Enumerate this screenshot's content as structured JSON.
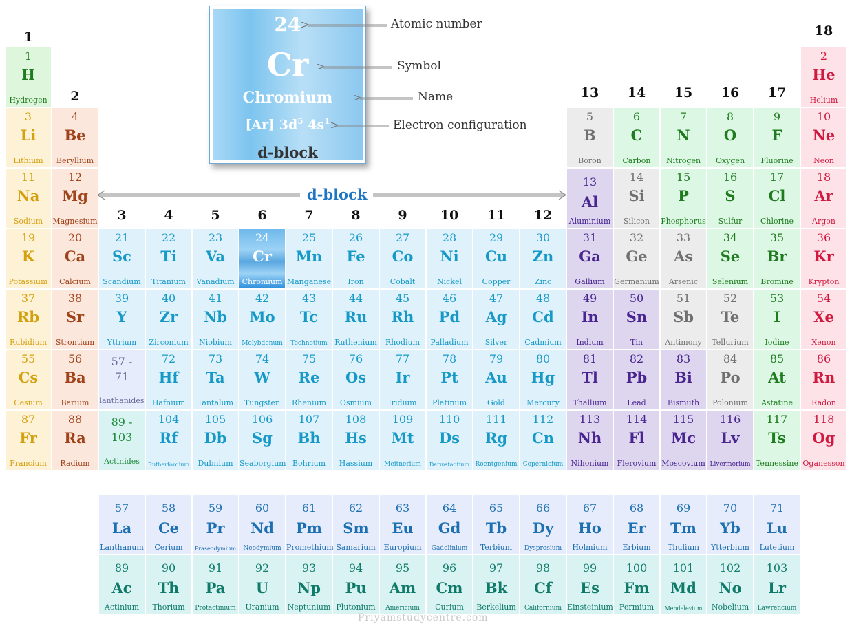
{
  "legend": {
    "number": "24",
    "symbol": "Cr",
    "name": "Chromium",
    "config_base": "[Ar] 3d",
    "config_sup1": "5",
    "config_mid": " 4s",
    "config_sup2": "1",
    "block": "d-block",
    "labels": {
      "atomic_number": "Atomic number",
      "symbol": "Symbol",
      "name": "Name",
      "electron_configuration": "Electron configuration"
    }
  },
  "dblock_label": "d-block",
  "watermark": "Priyamstudycentre.com",
  "groups": [
    {
      "label": "1",
      "col": 1
    },
    {
      "label": "2",
      "col": 2
    },
    {
      "label": "3",
      "col": 3
    },
    {
      "label": "4",
      "col": 4
    },
    {
      "label": "5",
      "col": 5
    },
    {
      "label": "6",
      "col": 6
    },
    {
      "label": "7",
      "col": 7
    },
    {
      "label": "8",
      "col": 8
    },
    {
      "label": "9",
      "col": 9
    },
    {
      "label": "10",
      "col": 10
    },
    {
      "label": "11",
      "col": 11
    },
    {
      "label": "12",
      "col": 12
    },
    {
      "label": "13",
      "col": 13
    },
    {
      "label": "14",
      "col": 14
    },
    {
      "label": "15",
      "col": 15
    },
    {
      "label": "16",
      "col": 16
    },
    {
      "label": "17",
      "col": 17
    },
    {
      "label": "18",
      "col": 18
    }
  ],
  "elements": [
    {
      "n": "1",
      "s": "H",
      "m": "Hydrogen",
      "r": 1,
      "c": 1,
      "t": "h"
    },
    {
      "n": "2",
      "s": "He",
      "m": "Helium",
      "r": 1,
      "c": 18,
      "t": "noble"
    },
    {
      "n": "3",
      "s": "Li",
      "m": "Lithium",
      "r": 2,
      "c": 1,
      "t": "alkali"
    },
    {
      "n": "4",
      "s": "Be",
      "m": "Beryllium",
      "r": 2,
      "c": 2,
      "t": "earth"
    },
    {
      "n": "5",
      "s": "B",
      "m": "Boron",
      "r": 2,
      "c": 13,
      "t": "metalloid"
    },
    {
      "n": "6",
      "s": "C",
      "m": "Carbon",
      "r": 2,
      "c": 14,
      "t": "nonmetal"
    },
    {
      "n": "7",
      "s": "N",
      "m": "Nitrogen",
      "r": 2,
      "c": 15,
      "t": "nonmetal"
    },
    {
      "n": "8",
      "s": "O",
      "m": "Oxygen",
      "r": 2,
      "c": 16,
      "t": "nonmetal"
    },
    {
      "n": "9",
      "s": "F",
      "m": "Fluorine",
      "r": 2,
      "c": 17,
      "t": "nonmetal"
    },
    {
      "n": "10",
      "s": "Ne",
      "m": "Neon",
      "r": 2,
      "c": 18,
      "t": "noble"
    },
    {
      "n": "11",
      "s": "Na",
      "m": "Sodium",
      "r": 3,
      "c": 1,
      "t": "alkali"
    },
    {
      "n": "12",
      "s": "Mg",
      "m": "Magnesium",
      "r": 3,
      "c": 2,
      "t": "earth"
    },
    {
      "n": "13",
      "s": "Al",
      "m": "Aluminium",
      "r": 3,
      "c": 13,
      "t": "post"
    },
    {
      "n": "14",
      "s": "Si",
      "m": "Silicon",
      "r": 3,
      "c": 14,
      "t": "metalloid"
    },
    {
      "n": "15",
      "s": "P",
      "m": "Phosphorus",
      "r": 3,
      "c": 15,
      "t": "nonmetal"
    },
    {
      "n": "16",
      "s": "S",
      "m": "Sulfur",
      "r": 3,
      "c": 16,
      "t": "nonmetal"
    },
    {
      "n": "17",
      "s": "Cl",
      "m": "Chlorine",
      "r": 3,
      "c": 17,
      "t": "nonmetal"
    },
    {
      "n": "18",
      "s": "Ar",
      "m": "Argon",
      "r": 3,
      "c": 18,
      "t": "noble"
    },
    {
      "n": "19",
      "s": "K",
      "m": "Potassium",
      "r": 4,
      "c": 1,
      "t": "alkali"
    },
    {
      "n": "20",
      "s": "Ca",
      "m": "Calcium",
      "r": 4,
      "c": 2,
      "t": "earth"
    },
    {
      "n": "21",
      "s": "Sc",
      "m": "Scandium",
      "r": 4,
      "c": 3,
      "t": "trans"
    },
    {
      "n": "22",
      "s": "Ti",
      "m": "Titanium",
      "r": 4,
      "c": 4,
      "t": "trans"
    },
    {
      "n": "23",
      "s": "Va",
      "m": "Vanadium",
      "r": 4,
      "c": 5,
      "t": "trans"
    },
    {
      "n": "24",
      "s": "Cr",
      "m": "Chromium",
      "r": 4,
      "c": 6,
      "t": "cr"
    },
    {
      "n": "25",
      "s": "Mn",
      "m": "Manganese",
      "r": 4,
      "c": 7,
      "t": "trans"
    },
    {
      "n": "26",
      "s": "Fe",
      "m": "Iron",
      "r": 4,
      "c": 8,
      "t": "trans"
    },
    {
      "n": "27",
      "s": "Co",
      "m": "Cobalt",
      "r": 4,
      "c": 9,
      "t": "trans"
    },
    {
      "n": "28",
      "s": "Ni",
      "m": "Nickel",
      "r": 4,
      "c": 10,
      "t": "trans"
    },
    {
      "n": "29",
      "s": "Cu",
      "m": "Copper",
      "r": 4,
      "c": 11,
      "t": "trans"
    },
    {
      "n": "30",
      "s": "Zn",
      "m": "Zinc",
      "r": 4,
      "c": 12,
      "t": "trans"
    },
    {
      "n": "31",
      "s": "Ga",
      "m": "Gallium",
      "r": 4,
      "c": 13,
      "t": "post"
    },
    {
      "n": "32",
      "s": "Ge",
      "m": "Germanium",
      "r": 4,
      "c": 14,
      "t": "metalloid"
    },
    {
      "n": "33",
      "s": "As",
      "m": "Arsenic",
      "r": 4,
      "c": 15,
      "t": "metalloid"
    },
    {
      "n": "34",
      "s": "Se",
      "m": "Selenium",
      "r": 4,
      "c": 16,
      "t": "nonmetal"
    },
    {
      "n": "35",
      "s": "Br",
      "m": "Bromine",
      "r": 4,
      "c": 17,
      "t": "nonmetal"
    },
    {
      "n": "36",
      "s": "Kr",
      "m": "Krypton",
      "r": 4,
      "c": 18,
      "t": "noble"
    },
    {
      "n": "37",
      "s": "Rb",
      "m": "Rubidium",
      "r": 5,
      "c": 1,
      "t": "alkali"
    },
    {
      "n": "38",
      "s": "Sr",
      "m": "Strontium",
      "r": 5,
      "c": 2,
      "t": "earth"
    },
    {
      "n": "39",
      "s": "Y",
      "m": "Yttrium",
      "r": 5,
      "c": 3,
      "t": "trans"
    },
    {
      "n": "40",
      "s": "Zr",
      "m": "Zirconium",
      "r": 5,
      "c": 4,
      "t": "trans"
    },
    {
      "n": "41",
      "s": "Nb",
      "m": "Niobium",
      "r": 5,
      "c": 5,
      "t": "trans"
    },
    {
      "n": "42",
      "s": "Mo",
      "m": "Molybdenum",
      "r": 5,
      "c": 6,
      "t": "trans",
      "sm": "small"
    },
    {
      "n": "43",
      "s": "Tc",
      "m": "Technetium",
      "r": 5,
      "c": 7,
      "t": "trans",
      "sm": "small"
    },
    {
      "n": "44",
      "s": "Ru",
      "m": "Ruthenium",
      "r": 5,
      "c": 8,
      "t": "trans"
    },
    {
      "n": "45",
      "s": "Rh",
      "m": "Rhodium",
      "r": 5,
      "c": 9,
      "t": "trans"
    },
    {
      "n": "46",
      "s": "Pd",
      "m": "Palladium",
      "r": 5,
      "c": 10,
      "t": "trans"
    },
    {
      "n": "47",
      "s": "Ag",
      "m": "Silver",
      "r": 5,
      "c": 11,
      "t": "trans"
    },
    {
      "n": "48",
      "s": "Cd",
      "m": "Cadmium",
      "r": 5,
      "c": 12,
      "t": "trans"
    },
    {
      "n": "49",
      "s": "In",
      "m": "Indium",
      "r": 5,
      "c": 13,
      "t": "post"
    },
    {
      "n": "50",
      "s": "Sn",
      "m": "Tin",
      "r": 5,
      "c": 14,
      "t": "post"
    },
    {
      "n": "51",
      "s": "Sb",
      "m": "Antimony",
      "r": 5,
      "c": 15,
      "t": "metalloid"
    },
    {
      "n": "52",
      "s": "Te",
      "m": "Tellurium",
      "r": 5,
      "c": 16,
      "t": "metalloid"
    },
    {
      "n": "53",
      "s": "I",
      "m": "Iodine",
      "r": 5,
      "c": 17,
      "t": "nonmetal"
    },
    {
      "n": "54",
      "s": "Xe",
      "m": "Xenon",
      "r": 5,
      "c": 18,
      "t": "noble"
    },
    {
      "n": "55",
      "s": "Cs",
      "m": "Cesium",
      "r": 6,
      "c": 1,
      "t": "alkali"
    },
    {
      "n": "56",
      "s": "Ba",
      "m": "Barium",
      "r": 6,
      "c": 2,
      "t": "earth"
    },
    {
      "n": "72",
      "s": "Hf",
      "m": "Hafnium",
      "r": 6,
      "c": 4,
      "t": "trans"
    },
    {
      "n": "73",
      "s": "Ta",
      "m": "Tantalum",
      "r": 6,
      "c": 5,
      "t": "trans"
    },
    {
      "n": "74",
      "s": "W",
      "m": "Tungsten",
      "r": 6,
      "c": 6,
      "t": "trans"
    },
    {
      "n": "75",
      "s": "Re",
      "m": "Rhenium",
      "r": 6,
      "c": 7,
      "t": "trans"
    },
    {
      "n": "76",
      "s": "Os",
      "m": "Osmium",
      "r": 6,
      "c": 8,
      "t": "trans"
    },
    {
      "n": "77",
      "s": "Ir",
      "m": "Iridium",
      "r": 6,
      "c": 9,
      "t": "trans"
    },
    {
      "n": "78",
      "s": "Pt",
      "m": "Platinum",
      "r": 6,
      "c": 10,
      "t": "trans"
    },
    {
      "n": "79",
      "s": "Au",
      "m": "Gold",
      "r": 6,
      "c": 11,
      "t": "trans"
    },
    {
      "n": "80",
      "s": "Hg",
      "m": "Mercury",
      "r": 6,
      "c": 12,
      "t": "trans"
    },
    {
      "n": "81",
      "s": "Tl",
      "m": "Thallium",
      "r": 6,
      "c": 13,
      "t": "post"
    },
    {
      "n": "82",
      "s": "Pb",
      "m": "Lead",
      "r": 6,
      "c": 14,
      "t": "post"
    },
    {
      "n": "83",
      "s": "Bi",
      "m": "Bismuth",
      "r": 6,
      "c": 15,
      "t": "post"
    },
    {
      "n": "84",
      "s": "Po",
      "m": "Polonium",
      "r": 6,
      "c": 16,
      "t": "metalloid"
    },
    {
      "n": "85",
      "s": "At",
      "m": "Astatine",
      "r": 6,
      "c": 17,
      "t": "nonmetal"
    },
    {
      "n": "86",
      "s": "Rn",
      "m": "Radon",
      "r": 6,
      "c": 18,
      "t": "noble"
    },
    {
      "n": "87",
      "s": "Fr",
      "m": "Francium",
      "r": 7,
      "c": 1,
      "t": "alkali"
    },
    {
      "n": "88",
      "s": "Ra",
      "m": "Radium",
      "r": 7,
      "c": 2,
      "t": "earth"
    },
    {
      "n": "104",
      "s": "Rf",
      "m": "Rutherfordium",
      "r": 7,
      "c": 4,
      "t": "trans",
      "sm": "xsmall"
    },
    {
      "n": "105",
      "s": "Db",
      "m": "Dubnium",
      "r": 7,
      "c": 5,
      "t": "trans"
    },
    {
      "n": "106",
      "s": "Sg",
      "m": "Seaborgium",
      "r": 7,
      "c": 6,
      "t": "trans"
    },
    {
      "n": "107",
      "s": "Bh",
      "m": "Bohrium",
      "r": 7,
      "c": 7,
      "t": "trans"
    },
    {
      "n": "108",
      "s": "Hs",
      "m": "Hassium",
      "r": 7,
      "c": 8,
      "t": "trans"
    },
    {
      "n": "109",
      "s": "Mt",
      "m": "Meitnerium",
      "r": 7,
      "c": 9,
      "t": "trans",
      "sm": "small"
    },
    {
      "n": "110",
      "s": "Ds",
      "m": "Darmstadtium",
      "r": 7,
      "c": 10,
      "t": "trans",
      "sm": "xsmall"
    },
    {
      "n": "111",
      "s": "Rg",
      "m": "Roentgenium",
      "r": 7,
      "c": 11,
      "t": "trans",
      "sm": "small"
    },
    {
      "n": "112",
      "s": "Cn",
      "m": "Copernicium",
      "r": 7,
      "c": 12,
      "t": "trans",
      "sm": "small"
    },
    {
      "n": "113",
      "s": "Nh",
      "m": "Nihonium",
      "r": 7,
      "c": 13,
      "t": "post"
    },
    {
      "n": "114",
      "s": "Fl",
      "m": "Flerovium",
      "r": 7,
      "c": 14,
      "t": "post"
    },
    {
      "n": "115",
      "s": "Mc",
      "m": "Moscovium",
      "r": 7,
      "c": 15,
      "t": "post"
    },
    {
      "n": "116",
      "s": "Lv",
      "m": "Livermorium",
      "r": 7,
      "c": 16,
      "t": "post",
      "sm": "small"
    },
    {
      "n": "117",
      "s": "Ts",
      "m": "Tennessine",
      "r": 7,
      "c": 17,
      "t": "nonmetal"
    },
    {
      "n": "118",
      "s": "Og",
      "m": "Oganesson",
      "r": 7,
      "c": 18,
      "t": "noble"
    }
  ],
  "series_refs": [
    {
      "n": "57 -",
      "n2": "71",
      "m": "lanthanides",
      "r": 6,
      "c": 3,
      "t": "lanthref"
    },
    {
      "n": "89 -",
      "n2": "103",
      "m": "Actinides",
      "r": 7,
      "c": 3,
      "t": "actref"
    }
  ],
  "lanthanides": [
    {
      "n": "57",
      "s": "La",
      "m": "Lanthanum"
    },
    {
      "n": "58",
      "s": "Ce",
      "m": "Cerium"
    },
    {
      "n": "59",
      "s": "Pr",
      "m": "Praseodymium",
      "sm": "xsmall"
    },
    {
      "n": "60",
      "s": "Nd",
      "m": "Neodymium",
      "sm": "small"
    },
    {
      "n": "61",
      "s": "Pm",
      "m": "Promethium"
    },
    {
      "n": "62",
      "s": "Sm",
      "m": "Samarium"
    },
    {
      "n": "63",
      "s": "Eu",
      "m": "Europium"
    },
    {
      "n": "64",
      "s": "Gd",
      "m": "Gadolinium",
      "sm": "small"
    },
    {
      "n": "65",
      "s": "Tb",
      "m": "Terbium"
    },
    {
      "n": "66",
      "s": "Dy",
      "m": "Dysprosium",
      "sm": "small"
    },
    {
      "n": "67",
      "s": "Ho",
      "m": "Holmium"
    },
    {
      "n": "68",
      "s": "Er",
      "m": "Erbium"
    },
    {
      "n": "69",
      "s": "Tm",
      "m": "Thulium"
    },
    {
      "n": "70",
      "s": "Yb",
      "m": "Ytterbium"
    },
    {
      "n": "71",
      "s": "Lu",
      "m": "Lutetium"
    }
  ],
  "actinides": [
    {
      "n": "89",
      "s": "Ac",
      "m": "Actinium"
    },
    {
      "n": "90",
      "s": "Th",
      "m": "Thorium"
    },
    {
      "n": "91",
      "s": "Pa",
      "m": "Protactinium",
      "sm": "small"
    },
    {
      "n": "92",
      "s": "U",
      "m": "Uranium"
    },
    {
      "n": "93",
      "s": "Np",
      "m": "Neptunium"
    },
    {
      "n": "94",
      "s": "Pu",
      "m": "Plutonium"
    },
    {
      "n": "95",
      "s": "Am",
      "m": "Americium",
      "sm": "small"
    },
    {
      "n": "96",
      "s": "Cm",
      "m": "Curium"
    },
    {
      "n": "97",
      "s": "Bk",
      "m": "Berkelium"
    },
    {
      "n": "98",
      "s": "Cf",
      "m": "Californium",
      "sm": "small"
    },
    {
      "n": "99",
      "s": "Es",
      "m": "Einsteinium"
    },
    {
      "n": "100",
      "s": "Fm",
      "m": "Fermium"
    },
    {
      "n": "101",
      "s": "Md",
      "m": "Mendelevium",
      "sm": "xsmall"
    },
    {
      "n": "102",
      "s": "No",
      "m": "Nobelium"
    },
    {
      "n": "103",
      "s": "Lr",
      "m": "Lawrencium",
      "sm": "small"
    }
  ]
}
